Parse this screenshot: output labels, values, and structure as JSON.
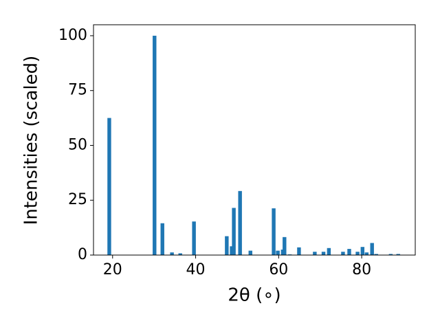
{
  "chart_data": {
    "type": "bar",
    "x_label": "2θ (∘)",
    "y_label": "Intensities (scaled)",
    "color": "#1f77b4",
    "bar_width": 0.9,
    "x": [
      19.2,
      30.1,
      32.0,
      34.3,
      36.3,
      39.6,
      47.5,
      48.7,
      49.2,
      50.7,
      53.2,
      58.8,
      59.8,
      61.0,
      61.4,
      62.7,
      64.9,
      68.7,
      70.8,
      72.1,
      75.5,
      77.0,
      79.0,
      80.2,
      81.2,
      82.5,
      83.5,
      87.0,
      88.8
    ],
    "values": [
      62.5,
      100,
      14.5,
      1.2,
      0.8,
      15.3,
      8.6,
      4,
      21.5,
      29.2,
      2,
      21.3,
      2,
      2.5,
      8.2,
      0.3,
      3.5,
      1.5,
      1.5,
      3.2,
      1.5,
      2.8,
      1.5,
      3.7,
      1.2,
      5.5,
      0.5,
      0.5,
      0.5
    ],
    "xlim": [
      15.4,
      92.9
    ],
    "xticks": [
      20,
      40,
      60,
      80
    ],
    "ylim": [
      0,
      105
    ],
    "yticks": [
      0,
      25,
      50,
      75,
      100
    ]
  }
}
